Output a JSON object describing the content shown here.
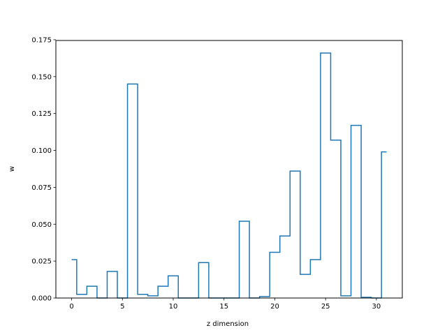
{
  "chart_data": {
    "type": "line",
    "drawstyle": "steps-mid",
    "title": "",
    "xlabel": "z dimension",
    "ylabel": "w",
    "xlim": [
      -1.55,
      32.55
    ],
    "ylim": [
      0.0,
      0.1745
    ],
    "xticks": [
      0,
      5,
      10,
      15,
      20,
      25,
      30
    ],
    "xtick_labels": [
      "0",
      "5",
      "10",
      "15",
      "20",
      "25",
      "30"
    ],
    "yticks": [
      0.0,
      0.025,
      0.05,
      0.075,
      0.1,
      0.125,
      0.15,
      0.175
    ],
    "ytick_labels": [
      "0.000",
      "0.025",
      "0.050",
      "0.075",
      "0.100",
      "0.125",
      "0.150",
      "0.175"
    ],
    "grid": false,
    "legend": false,
    "series_color": "#1f77b4",
    "x": [
      0,
      1,
      2,
      3,
      4,
      5,
      6,
      7,
      8,
      9,
      10,
      11,
      12,
      13,
      14,
      15,
      16,
      17,
      18,
      19,
      20,
      21,
      22,
      23,
      24,
      25,
      26,
      27,
      28,
      29,
      30,
      31
    ],
    "values": [
      0.026,
      0.0025,
      0.008,
      0.0,
      0.018,
      0.0,
      0.145,
      0.0025,
      0.0015,
      0.008,
      0.015,
      0.0,
      0.0,
      0.024,
      0.0,
      0.0,
      0.0,
      0.052,
      0.0,
      0.001,
      0.031,
      0.042,
      0.086,
      0.016,
      0.026,
      0.166,
      0.107,
      0.0015,
      0.117,
      0.0005,
      0.0,
      0.099
    ]
  }
}
